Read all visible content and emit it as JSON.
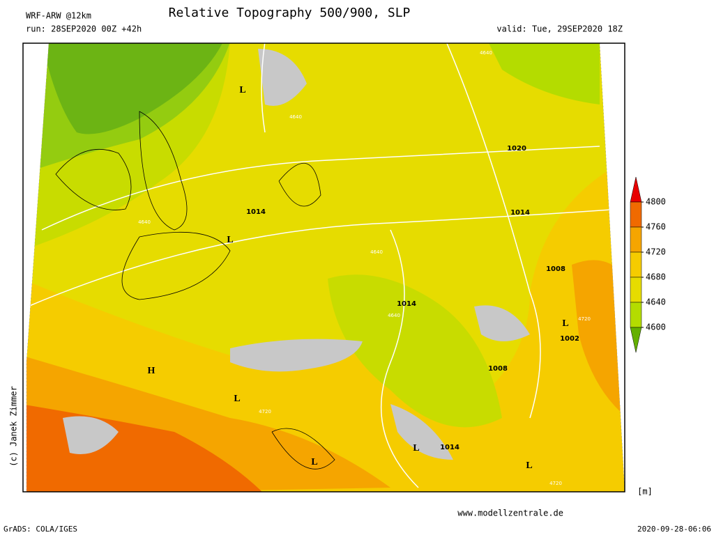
{
  "header": {
    "model": "WRF-ARW @12km",
    "run": "run: 28SEP2020 00Z +42h",
    "title": "Relative Topography 500/900, SLP",
    "valid": "valid: Tue, 29SEP2020 18Z"
  },
  "legend": {
    "levels": [
      4800,
      4760,
      4720,
      4680,
      4640,
      4600
    ],
    "colors": [
      "#e80000",
      "#f06a00",
      "#f5a500",
      "#f5cc00",
      "#e6dc00",
      "#b4dc00",
      "#64b000"
    ],
    "unit": "[m]"
  },
  "map": {
    "pressure_labels": [
      "1020",
      "1014",
      "1014",
      "1014",
      "1008",
      "1008",
      "1002",
      "1014"
    ],
    "height_labels": [
      "4640",
      "4640",
      "4640",
      "4640",
      "4640",
      "4720",
      "4720",
      "4720"
    ],
    "centers": [
      "L",
      "L",
      "H",
      "L",
      "L",
      "L",
      "L",
      "L"
    ],
    "copyright": "(c) Janek Zimmer"
  },
  "footer": {
    "software": "GrADS: COLA/IGES",
    "site": "www.modellzentrale.de",
    "timestamp": "2020-09-28-06:06"
  }
}
